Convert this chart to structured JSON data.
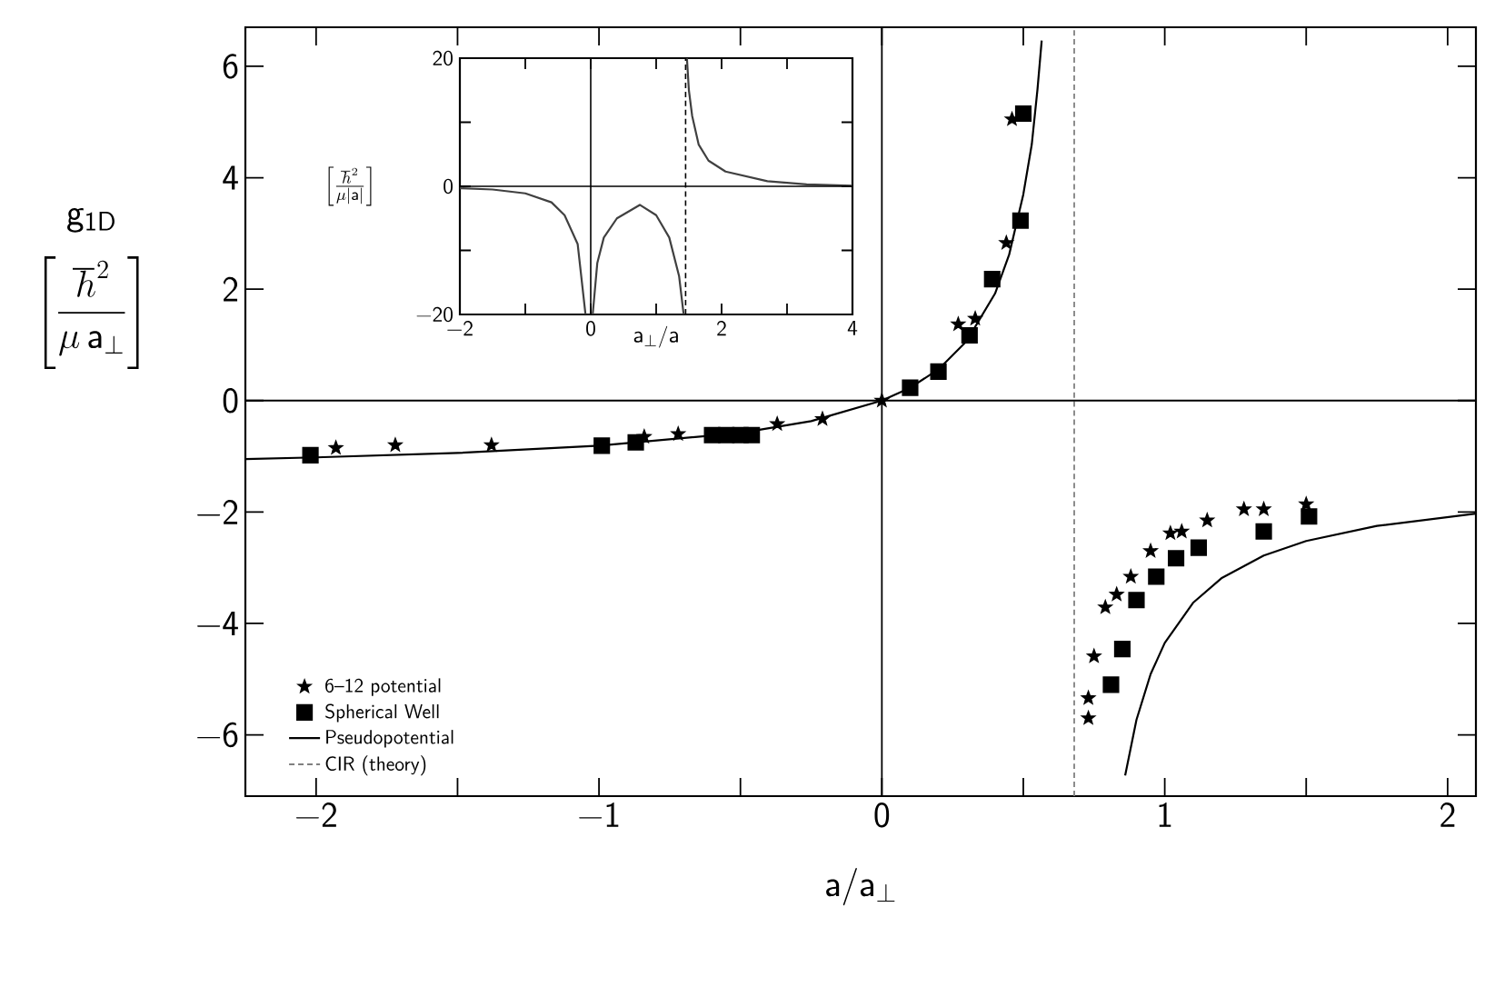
{
  "chart_data": [
    {
      "type": "scatter",
      "xlabel": "\\mathsf{a}/\\mathsf{a}_{\\perp}",
      "ylabel": "\\begin{array}{c}\\mathsf{g}_{\\mathsf{1D}}\\\\[10pt]\\left[\\dfrac{\\hbar^{2}}{\\mu\\, \\mathsf{a}_{\\perp}}\\right]\\end{array}",
      "xlim": [
        -2.25,
        2.1
      ],
      "ylim": [
        -7.1,
        6.7
      ],
      "xticks": [
        {
          "value": -2,
          "label": "−2"
        },
        {
          "value": -1.5,
          "label": null
        },
        {
          "value": -1,
          "label": "−1"
        },
        {
          "value": -0.5,
          "label": null
        },
        0,
        {
          "value": 0.5,
          "label": null
        },
        1,
        {
          "value": 1.5,
          "label": null
        },
        2
      ],
      "yticks": [
        {
          "value": -6,
          "label": "−6"
        },
        {
          "value": -4,
          "label": "−4"
        },
        {
          "value": -2,
          "label": "−2"
        },
        0,
        2,
        4,
        6
      ],
      "legend": "bottom left",
      "series": [
        {
          "name": "6–12 potential",
          "type": "scatter",
          "marker": "star",
          "color": "#000000",
          "x": [
            -1.93,
            -1.72,
            -1.38,
            -0.84,
            -0.72,
            -0.37,
            -0.21,
            0.0,
            0.27,
            0.33,
            0.44,
            0.46,
            0.73,
            0.73,
            0.75,
            0.79,
            0.83,
            0.88,
            0.95,
            1.02,
            1.06,
            1.15,
            1.28,
            1.35,
            1.5
          ],
          "values": [
            -0.85,
            -0.8,
            -0.8,
            -0.65,
            -0.6,
            -0.42,
            -0.33,
            0.0,
            1.37,
            1.47,
            2.83,
            5.05,
            -5.7,
            -5.34,
            -4.59,
            -3.71,
            -3.48,
            -3.16,
            -2.7,
            -2.38,
            -2.35,
            -2.15,
            -1.95,
            -1.95,
            -1.86
          ]
        },
        {
          "name": "Spherical Well",
          "type": "scatter",
          "marker": "square",
          "color": "#000000",
          "x": [
            -2.02,
            -0.99,
            -0.87,
            -0.6,
            -0.55,
            -0.5,
            -0.46,
            0.1,
            0.2,
            0.31,
            0.39,
            0.49,
            0.5,
            0.81,
            0.85,
            0.9,
            0.97,
            1.04,
            1.12,
            1.35,
            1.51
          ],
          "values": [
            -0.98,
            -0.81,
            -0.75,
            -0.62,
            -0.62,
            -0.62,
            -0.62,
            0.23,
            0.52,
            1.17,
            2.18,
            3.23,
            5.15,
            -5.1,
            -4.46,
            -3.58,
            -3.16,
            -2.83,
            -2.64,
            -2.35,
            -2.08
          ]
        },
        {
          "name": "Pseudopotential",
          "type": "line",
          "color": "#000000",
          "x": [
            -2.25,
            -2,
            -1.5,
            -1,
            -0.5,
            -0.25,
            0,
            0.1,
            0.2,
            0.3,
            0.4,
            0.45,
            0.5,
            0.53,
            0.55,
            0.565,
            0.68,
            0.86,
            0.9,
            0.95,
            1.0,
            1.1,
            1.2,
            1.35,
            1.5,
            1.75,
            2.1
          ],
          "values": [
            -1.05,
            -1.02,
            -0.94,
            -0.81,
            -0.58,
            -0.37,
            0,
            0.23,
            0.56,
            1.07,
            1.92,
            2.62,
            3.7,
            4.6,
            5.58,
            6.46,
            null,
            -6.73,
            -5.73,
            -4.91,
            -4.35,
            -3.63,
            -3.19,
            -2.78,
            -2.52,
            -2.25,
            -2.03
          ]
        },
        {
          "name": "CIR  (theory)",
          "type": "line",
          "line_style": "dashed",
          "color": "#808080",
          "x": [
            0.68,
            0.68
          ],
          "values": [
            -7.1,
            6.7
          ]
        }
      ],
      "ref_lines": [
        {
          "axis": "x",
          "value": 0,
          "color": "#000000",
          "line_style": "solid"
        },
        {
          "axis": "y",
          "value": 0,
          "color": "#000000",
          "line_style": "solid"
        }
      ]
    },
    {
      "type": "line",
      "xlabel": "\\mathsf{a}_{\\perp}/\\mathsf{a}",
      "ylabel": "\\left[\\frac{\\hbar^{2}}{\\mu |\\mathsf{a}|}\\right]",
      "xlim": [
        -2,
        4
      ],
      "ylim": [
        -20,
        20
      ],
      "xticks": [
        {
          "value": -2,
          "label": "−2"
        },
        {
          "value": -1,
          "label": null
        },
        0,
        {
          "value": 1,
          "label": null
        },
        2,
        {
          "value": 3,
          "label": null
        },
        4
      ],
      "yticks": [
        {
          "value": -20,
          "label": "−20"
        },
        {
          "value": -10,
          "label": null
        },
        0,
        {
          "value": 10,
          "label": null
        },
        20
      ],
      "series": [
        {
          "color": "#404040",
          "x": [
            -2,
            -1.5,
            -1,
            -0.6,
            -0.4,
            -0.2,
            -0.08,
            -0.03,
            0.03,
            0.1,
            0.2,
            0.4,
            0.75,
            1.0,
            1.2,
            1.35,
            1.42,
            1.45,
            1.47,
            1.5,
            1.55,
            1.65,
            1.8,
            2.06,
            2.7,
            3.3,
            4
          ],
          "values": [
            -0.3,
            -0.5,
            -1.1,
            -2.5,
            -4.5,
            -9,
            -20,
            null,
            -20,
            -12,
            -8,
            -5,
            -2.9,
            -4.5,
            -8,
            -14,
            -20,
            null,
            20,
            15,
            11,
            6.5,
            4,
            2.3,
            0.8,
            0.3,
            0.1
          ]
        }
      ],
      "ref_lines": [
        {
          "axis": "x",
          "value": 0,
          "color": "#000000",
          "line_style": "solid"
        },
        {
          "axis": "y",
          "value": 0,
          "color": "#000000",
          "line_style": "solid"
        },
        {
          "axis": "x",
          "value": 1.45,
          "color": "#000000",
          "line_style": "dashed"
        }
      ]
    }
  ]
}
